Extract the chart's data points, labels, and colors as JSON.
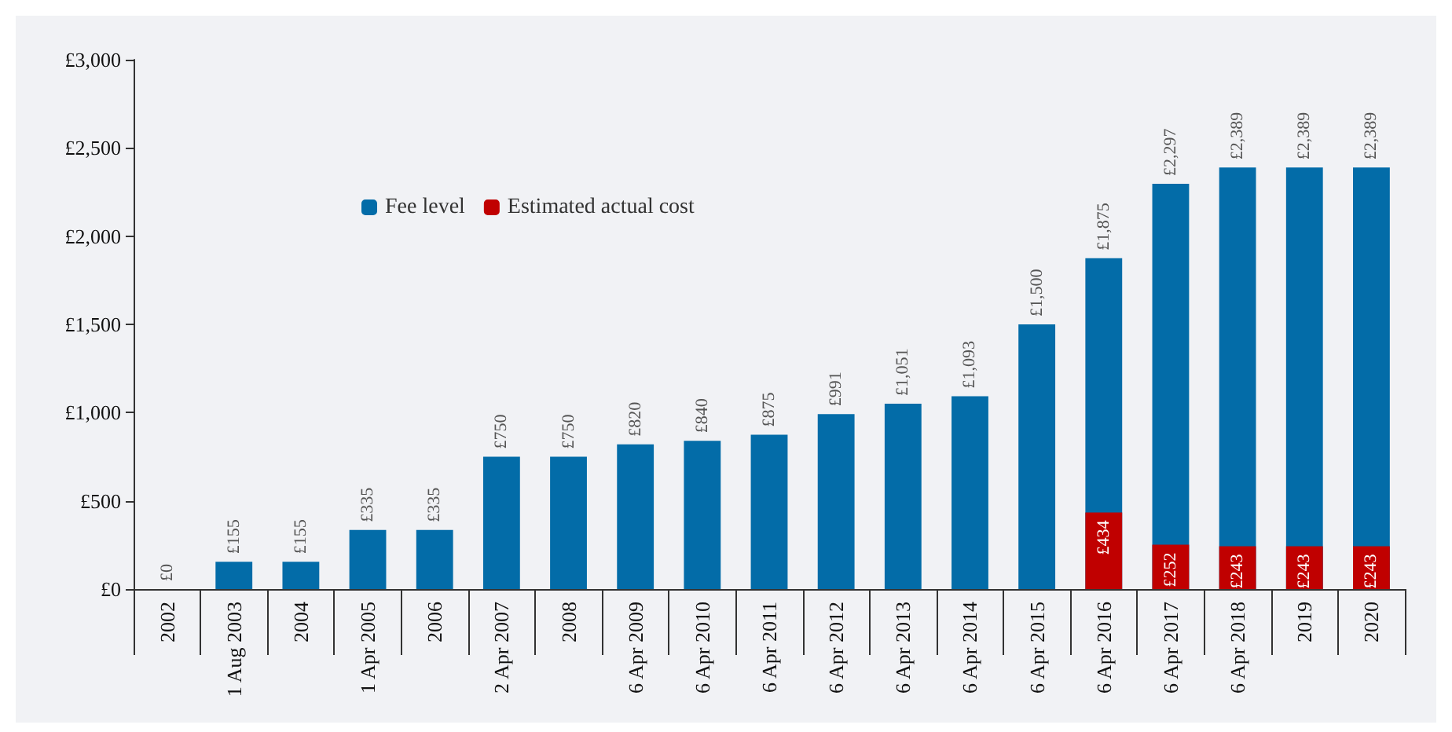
{
  "chart_data": {
    "type": "bar",
    "categories": [
      "2002",
      "1 Aug 2003",
      "2004",
      "1 Apr 2005",
      "2006",
      "2 Apr 2007",
      "2008",
      "6 Apr 2009",
      "6 Apr 2010",
      "6 Apr 2011",
      "6 Apr 2012",
      "6 Apr 2013",
      "6 Apr 2014",
      "6 Apr 2015",
      "6 Apr 2016",
      "6 Apr 2017",
      "6 Apr 2018",
      "2019",
      "2020"
    ],
    "series": [
      {
        "name": "Fee level",
        "color": "#036ca8",
        "values": [
          0,
          155,
          155,
          335,
          335,
          750,
          750,
          820,
          840,
          875,
          991,
          1051,
          1093,
          1500,
          1875,
          2297,
          2389,
          2389,
          2389
        ],
        "value_labels": [
          "£0",
          "£155",
          "£155",
          "£335",
          "£335",
          "£750",
          "£750",
          "£820",
          "£840",
          "£875",
          "£991",
          "£1,051",
          "£1,093",
          "£1,500",
          "£1,875",
          "£2,297",
          "£2,389",
          "£2,389",
          "£2,389"
        ]
      },
      {
        "name": "Estimated actual cost",
        "color": "#c00000",
        "values": [
          null,
          null,
          null,
          null,
          null,
          null,
          null,
          null,
          null,
          null,
          null,
          null,
          null,
          null,
          434,
          252,
          243,
          243,
          243
        ],
        "value_labels": [
          null,
          null,
          null,
          null,
          null,
          null,
          null,
          null,
          null,
          null,
          null,
          null,
          null,
          null,
          "£434",
          "£252",
          "£243",
          "£243",
          "£243"
        ]
      }
    ],
    "ylim": [
      0,
      3000
    ],
    "yticks": [
      {
        "value": 0,
        "label": "£0"
      },
      {
        "value": 500,
        "label": "£500"
      },
      {
        "value": 1000,
        "label": "£1,000"
      },
      {
        "value": 1500,
        "label": "£1,500"
      },
      {
        "value": 2000,
        "label": "£2,000"
      },
      {
        "value": 2500,
        "label": "£2,500"
      },
      {
        "value": 3000,
        "label": "£3,000"
      }
    ],
    "grid": false,
    "legend": "top left"
  }
}
